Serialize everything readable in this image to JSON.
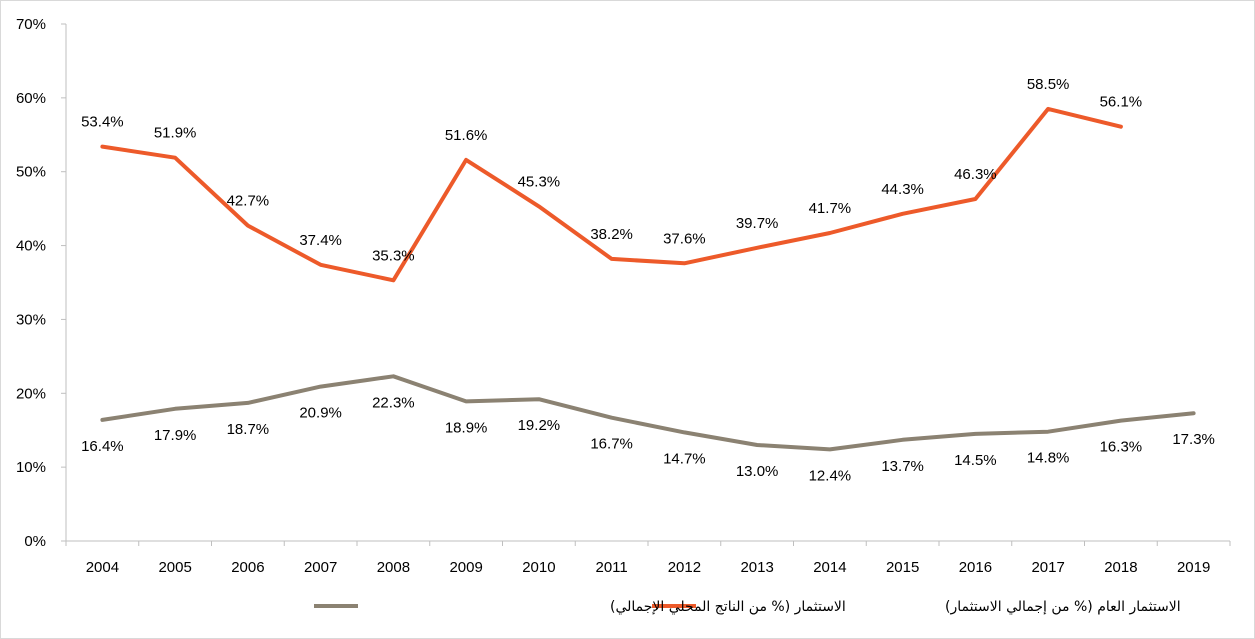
{
  "chart_data": {
    "type": "line",
    "x": [
      "2004",
      "2005",
      "2006",
      "2007",
      "2008",
      "2009",
      "2010",
      "2011",
      "2012",
      "2013",
      "2014",
      "2015",
      "2016",
      "2017",
      "2018",
      "2019"
    ],
    "ylim": [
      0,
      70
    ],
    "y_ticks": [
      "0%",
      "10%",
      "20%",
      "30%",
      "40%",
      "50%",
      "60%",
      "70%"
    ],
    "grid": false,
    "legend_position": "bottom",
    "series": [
      {
        "name": "الاستثمار العام (% من إجمالي الاستثمار)",
        "color": "#ED5A2A",
        "values": [
          53.4,
          51.9,
          42.7,
          37.4,
          35.3,
          51.6,
          45.3,
          38.2,
          37.6,
          39.7,
          41.7,
          44.3,
          46.3,
          58.5,
          56.1,
          null
        ],
        "labels": [
          "53.4%",
          "51.9%",
          "42.7%",
          "37.4%",
          "35.3%",
          "51.6%",
          "45.3%",
          "38.2%",
          "37.6%",
          "39.7%",
          "41.7%",
          "44.3%",
          "46.3%",
          "58.5%",
          "56.1%",
          null
        ]
      },
      {
        "name": "الاستثمار (% من الناتج المحلي الإجمالي)",
        "color": "#8B8272",
        "values": [
          16.4,
          17.9,
          18.7,
          20.9,
          22.3,
          18.9,
          19.2,
          16.7,
          14.7,
          13.0,
          12.4,
          13.7,
          14.5,
          14.8,
          16.3,
          17.3
        ],
        "labels": [
          "16.4%",
          "17.9%",
          "18.7%",
          "20.9%",
          "22.3%",
          "18.9%",
          "19.2%",
          "16.7%",
          "14.7%",
          "13.0%",
          "12.4%",
          "13.7%",
          "14.5%",
          "14.8%",
          "16.3%",
          "17.3%"
        ]
      }
    ]
  }
}
